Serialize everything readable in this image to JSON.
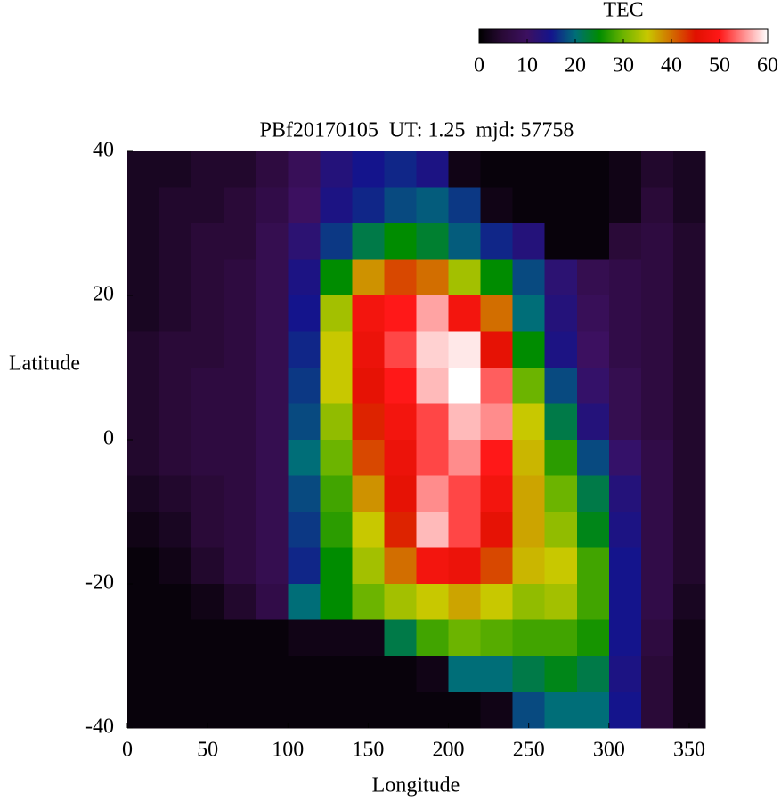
{
  "chart_data": {
    "type": "heatmap",
    "title": "PBf20170105  UT: 1.25  mjd: 57758",
    "x_label": "Longitude",
    "y_label": "Latitude",
    "xlim": [
      0,
      360
    ],
    "ylim": [
      -40,
      40
    ],
    "xticks": [
      0,
      50,
      100,
      150,
      200,
      250,
      300,
      350
    ],
    "yticks": [
      -40,
      -20,
      0,
      20,
      40
    ],
    "x": [
      10,
      30,
      50,
      70,
      90,
      110,
      130,
      150,
      170,
      190,
      210,
      230,
      250,
      270,
      290,
      310,
      330,
      350
    ],
    "y": [
      37.5,
      32.5,
      27.5,
      22.5,
      17.5,
      12.5,
      7.5,
      2.5,
      -2.5,
      -7.5,
      -12.5,
      -17.5,
      -22.5,
      -27.5,
      -32.5,
      -37.5
    ],
    "values": [
      [
        3,
        3,
        4,
        4,
        6,
        9,
        13,
        15,
        16,
        14,
        2,
        1,
        1,
        1,
        1,
        2,
        4,
        3
      ],
      [
        3,
        4,
        4,
        5,
        7,
        10,
        14,
        16,
        18,
        19,
        17,
        2,
        1,
        1,
        1,
        2,
        5,
        3
      ],
      [
        3,
        4,
        5,
        5,
        8,
        12,
        17,
        22,
        25,
        23,
        19,
        16,
        13,
        1,
        1,
        5,
        6,
        4
      ],
      [
        3,
        4,
        5,
        6,
        8,
        14,
        25,
        38,
        42,
        40,
        33,
        25,
        18,
        12,
        8,
        7,
        6,
        4
      ],
      [
        3,
        4,
        5,
        6,
        8,
        15,
        33,
        48,
        50,
        56,
        48,
        40,
        20,
        13,
        9,
        7,
        6,
        4
      ],
      [
        4,
        5,
        5,
        6,
        8,
        16,
        35,
        47,
        52,
        58,
        59,
        46,
        25,
        14,
        10,
        7,
        6,
        4
      ],
      [
        4,
        5,
        6,
        6,
        8,
        17,
        35,
        46,
        50,
        57,
        60,
        53,
        30,
        18,
        11,
        8,
        6,
        4
      ],
      [
        4,
        5,
        6,
        6,
        8,
        18,
        32,
        44,
        48,
        52,
        57,
        55,
        35,
        22,
        13,
        8,
        6,
        4
      ],
      [
        4,
        5,
        6,
        6,
        8,
        20,
        30,
        42,
        47,
        52,
        55,
        50,
        36,
        27,
        18,
        11,
        7,
        4
      ],
      [
        3,
        4,
        5,
        6,
        8,
        18,
        28,
        38,
        46,
        55,
        52,
        48,
        37,
        30,
        22,
        13,
        7,
        4
      ],
      [
        2,
        3,
        5,
        6,
        8,
        17,
        27,
        35,
        44,
        57,
        52,
        46,
        37,
        32,
        24,
        14,
        7,
        4
      ],
      [
        1,
        2,
        4,
        6,
        8,
        16,
        25,
        33,
        40,
        48,
        47,
        42,
        36,
        35,
        28,
        15,
        7,
        4
      ],
      [
        1,
        1,
        2,
        4,
        7,
        20,
        25,
        30,
        33,
        35,
        37,
        35,
        32,
        33,
        28,
        15,
        7,
        3
      ],
      [
        1,
        1,
        1,
        1,
        1,
        2,
        2,
        2,
        22,
        28,
        30,
        29,
        28,
        28,
        26,
        15,
        6,
        2
      ],
      [
        1,
        1,
        1,
        1,
        1,
        1,
        1,
        1,
        1,
        2,
        20,
        20,
        22,
        24,
        22,
        14,
        5,
        2
      ],
      [
        1,
        1,
        1,
        1,
        1,
        1,
        1,
        1,
        1,
        1,
        1,
        2,
        18,
        20,
        20,
        15,
        5,
        2
      ]
    ],
    "colorbar": {
      "title": "TEC",
      "lim": [
        0,
        60
      ],
      "ticks": [
        0,
        10,
        20,
        30,
        40,
        50,
        60
      ],
      "colors": [
        "#000000",
        "#2a0a38",
        "#3c1060",
        "#14148c",
        "#006e78",
        "#008c00",
        "#6cb400",
        "#c8c800",
        "#d26e00",
        "#e01000",
        "#ff1818",
        "#ff8c8c",
        "#ffffff"
      ]
    }
  }
}
